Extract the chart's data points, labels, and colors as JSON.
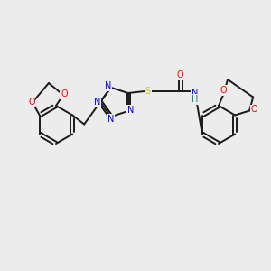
{
  "background_color": "#ececec",
  "bond_color": "#1a1a1a",
  "atom_colors": {
    "O": "#ff0000",
    "N": "#0000ee",
    "S": "#cccc00",
    "H": "#008080",
    "C": "#1a1a1a"
  }
}
